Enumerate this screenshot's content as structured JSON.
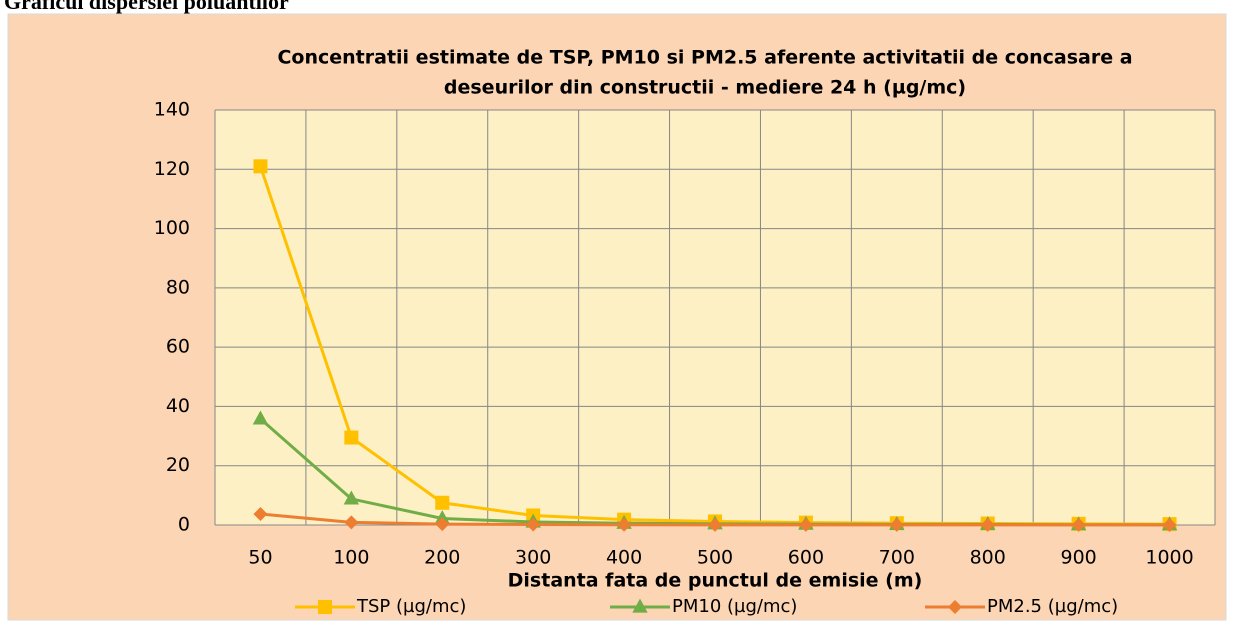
{
  "heading": "Graficul dispersiei poluantilor",
  "chart_data": {
    "type": "line",
    "title": [
      "Concentratii estimate de TSP, PM10 si PM2.5 aferente activitatii de concasare a",
      "deseurilor din constructii - mediere 24 h (µg/mc)"
    ],
    "x_label": "Distanta fata de punctul de emisie (m)",
    "categories": [
      "50",
      "100",
      "200",
      "300",
      "400",
      "500",
      "600",
      "700",
      "800",
      "900",
      "1000"
    ],
    "series": [
      {
        "name": "TSP (µg/mc)",
        "color": "#ffc000",
        "marker": "square",
        "values": [
          121,
          29.5,
          7.5,
          3.2,
          1.8,
          1.2,
          0.8,
          0.6,
          0.5,
          0.4,
          0.3
        ]
      },
      {
        "name": "PM10 (µg/mc)",
        "color": "#70ad47",
        "marker": "triangle",
        "values": [
          35.8,
          8.8,
          2.2,
          1.0,
          0.6,
          0.4,
          0.3,
          0.2,
          0.2,
          0.1,
          0.1
        ]
      },
      {
        "name": "PM2.5 (µg/mc)",
        "color": "#ed7d31",
        "marker": "diamond",
        "values": [
          3.7,
          0.9,
          0.3,
          0.15,
          0.1,
          0.06,
          0.05,
          0.04,
          0.03,
          0.03,
          0.02
        ]
      }
    ],
    "ylim": [
      0,
      140
    ],
    "yticks": [
      0,
      20,
      40,
      60,
      80,
      100,
      120,
      140
    ],
    "grid": true,
    "legend": "bottom"
  }
}
